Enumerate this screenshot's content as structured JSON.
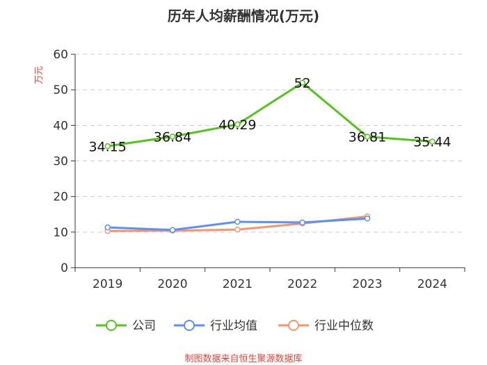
{
  "chart_data": {
    "type": "line",
    "title": "历年人均薪酬情况(万元)",
    "ylabel": "万元",
    "xlabel": "",
    "ylim": [
      0,
      60
    ],
    "yticks": [
      0,
      10,
      20,
      30,
      40,
      50,
      60
    ],
    "categories": [
      "2019",
      "2020",
      "2021",
      "2022",
      "2023",
      "2024"
    ],
    "series": [
      {
        "name": "公司",
        "color": "#52c41a",
        "values": [
          34.15,
          36.84,
          40.29,
          52,
          36.81,
          35.44
        ],
        "labels": [
          "34.15",
          "36.84",
          "40.29",
          "52",
          "36.81",
          "35.44"
        ]
      },
      {
        "name": "行业均值",
        "color": "#5b8ff9",
        "values": [
          11.3,
          10.6,
          12.9,
          12.7,
          13.8,
          null
        ]
      },
      {
        "name": "行业中位数",
        "color": "#f6956b",
        "values": [
          10.3,
          10.4,
          10.7,
          12.4,
          14.4,
          null
        ]
      }
    ],
    "grid": true,
    "legend": "bottom-center"
  },
  "footer": {
    "source": "制图数据来自恒生聚源数据库"
  },
  "colors": {
    "ylabel": "#e8413c",
    "source": "#e8413c",
    "axis": "#333333",
    "grid": "#cccccc"
  }
}
